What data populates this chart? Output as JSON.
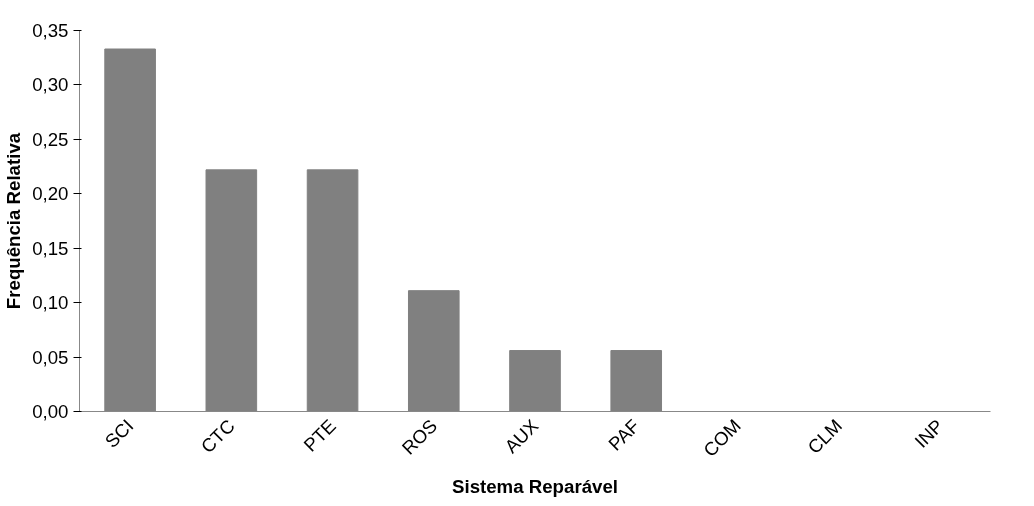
{
  "chart_data": {
    "type": "bar",
    "xlabel": "Sistema Reparável",
    "ylabel": "Frequência Relativa",
    "categories": [
      "SCI",
      "CTC",
      "PTE",
      "ROS",
      "AUX",
      "PAF",
      "COM",
      "CLM",
      "INP"
    ],
    "values": [
      0.333,
      0.222,
      0.222,
      0.111,
      0.056,
      0.056,
      0,
      0,
      0
    ],
    "color": "#808080",
    "ylim": [
      0,
      0.35
    ],
    "yticks": [
      {
        "value": 0,
        "label": "0,00"
      },
      {
        "value": 0.05,
        "label": "0,05"
      },
      {
        "value": 0.1,
        "label": "0,10"
      },
      {
        "value": 0.15,
        "label": "0,15"
      },
      {
        "value": 0.2,
        "label": "0,20"
      },
      {
        "value": 0.25,
        "label": "0,25"
      },
      {
        "value": 0.3,
        "label": "0,30"
      },
      {
        "value": 0.35,
        "label": "0,35"
      }
    ],
    "grid": false
  }
}
